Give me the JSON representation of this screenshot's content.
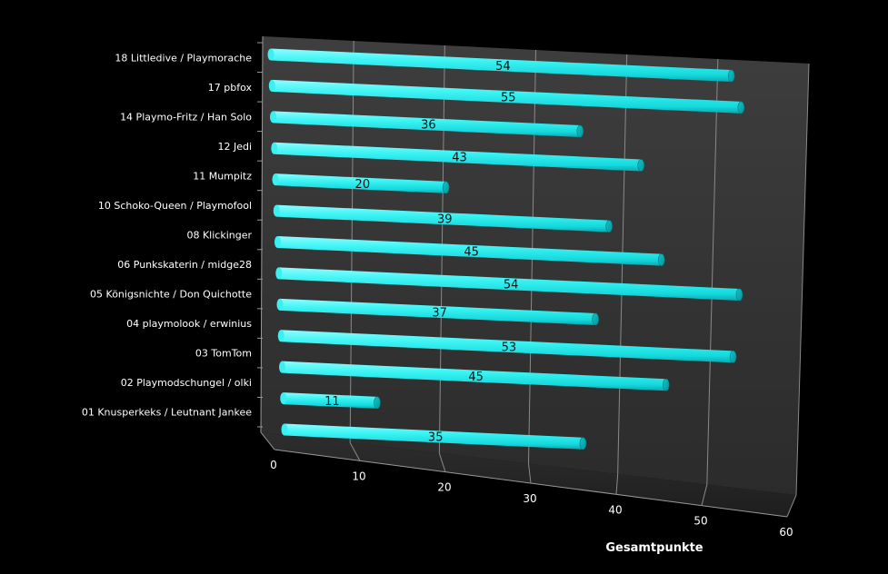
{
  "chart_data": {
    "type": "bar",
    "orientation": "horizontal",
    "style": "3d-cylinder",
    "categories": [
      "18 Littledive / Playmorache",
      "17 pbfox",
      "14 Playmo-Fritz / Han Solo",
      "12 Jedi",
      "11 Mumpitz",
      "10 Schoko-Queen / Playmofool",
      "08 Klickinger",
      "06 Punkskaterin / midge28",
      "05 Königsnichte / Don Quichotte",
      "04 playmolook / erwinius",
      "03 TomTom",
      "02 Playmodschungel / olki",
      "01 Knusperkeks / Leutnant Jankee"
    ],
    "values": [
      54,
      55,
      36,
      43,
      20,
      39,
      45,
      54,
      37,
      53,
      45,
      11,
      35
    ],
    "xlabel": "Gesamtpunkte",
    "xlim": [
      0,
      60
    ],
    "xticks": [
      "0",
      "10",
      "20",
      "30",
      "40",
      "50",
      "60"
    ],
    "grid": true,
    "legend": "none",
    "colors": {
      "bar": "#20f0f0",
      "background": "#000000",
      "wall": "#3a3a3a",
      "grid": "#8a8a8a"
    }
  }
}
